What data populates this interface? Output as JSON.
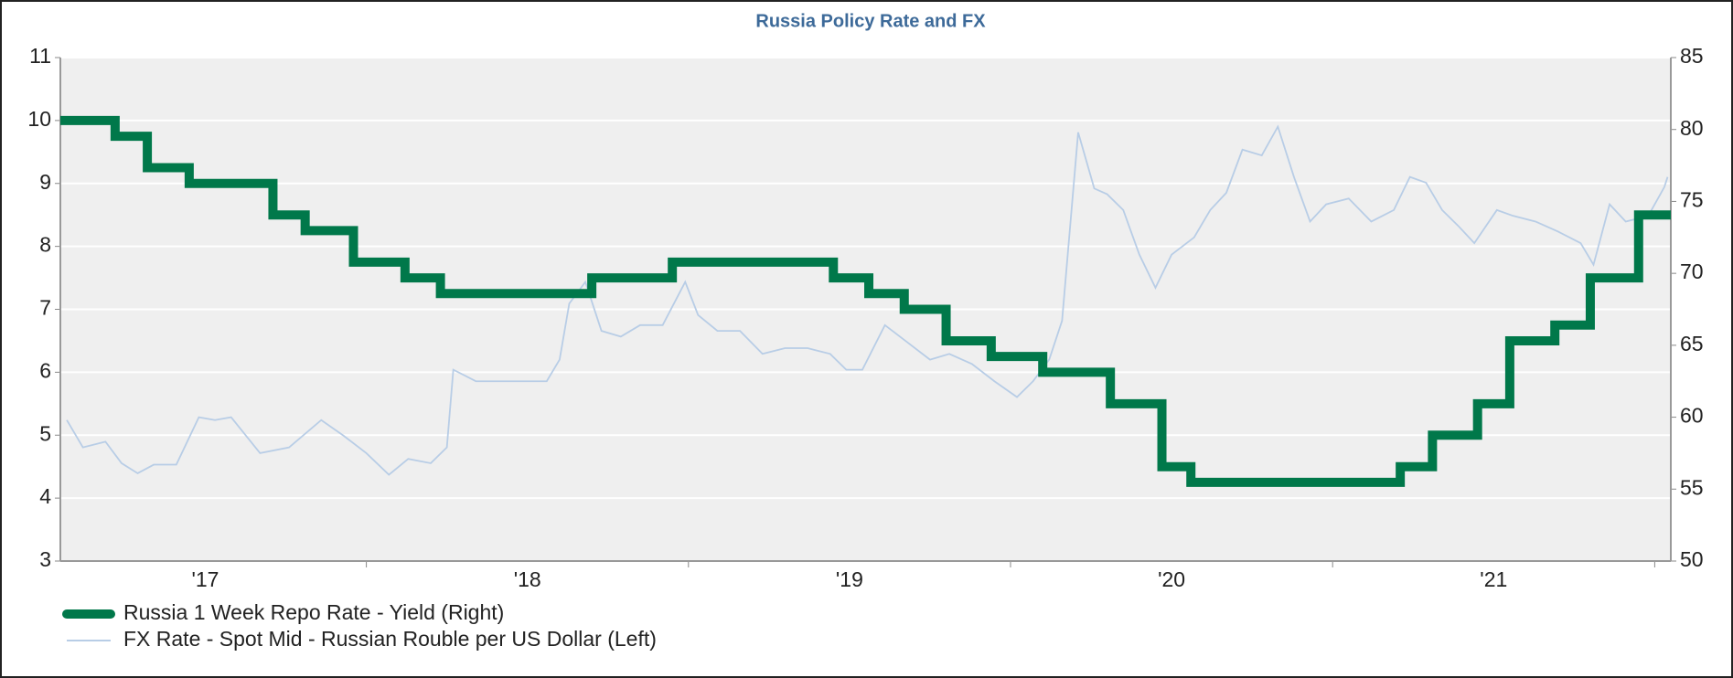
{
  "chart_data": {
    "type": "line",
    "title": "Russia Policy Rate and FX",
    "xlim": [
      2017.05,
      2022.05
    ],
    "xticks": [
      {
        "value": 2017,
        "label": "'17"
      },
      {
        "value": 2018,
        "label": "'18"
      },
      {
        "value": 2019,
        "label": "'19"
      },
      {
        "value": 2020,
        "label": "'20"
      },
      {
        "value": 2021,
        "label": "'21"
      }
    ],
    "ylim": [
      3,
      11
    ],
    "yticks": [
      3,
      4,
      5,
      6,
      7,
      8,
      9,
      10,
      11
    ],
    "y2lim": [
      50,
      85
    ],
    "y2ticks": [
      50,
      55,
      60,
      65,
      70,
      75,
      80,
      85
    ],
    "grid": true,
    "series": [
      {
        "name": "Russia 1 Week Repo Rate - Yield (Right)",
        "color": "#00784a",
        "step": "post",
        "x": [
          2017.05,
          2017.22,
          2017.32,
          2017.45,
          2017.71,
          2017.81,
          2017.96,
          2018.12,
          2018.23,
          2018.7,
          2018.95,
          2019.45,
          2019.56,
          2019.67,
          2019.8,
          2019.94,
          2020.1,
          2020.31,
          2020.47,
          2020.56,
          2021.21,
          2021.31,
          2021.45,
          2021.55,
          2021.69,
          2021.8,
          2021.95
        ],
        "values": [
          10,
          9.75,
          9.25,
          9,
          8.5,
          8.25,
          7.75,
          7.5,
          7.25,
          7.5,
          7.75,
          7.5,
          7.25,
          7,
          6.5,
          6.25,
          6,
          5.5,
          4.5,
          4.25,
          4.5,
          5,
          5.5,
          6.5,
          6.75,
          7.5,
          8.5
        ]
      },
      {
        "name": "FX Rate - Spot Mid - Russian Rouble per US Dollar (Left)",
        "color": "#b8cde6",
        "axis": "y2",
        "x": [
          2017.07,
          2017.12,
          2017.19,
          2017.24,
          2017.29,
          2017.34,
          2017.41,
          2017.48,
          2017.53,
          2017.58,
          2017.67,
          2017.76,
          2017.86,
          2017.93,
          2018.0,
          2018.07,
          2018.13,
          2018.2,
          2018.25,
          2018.27,
          2018.34,
          2018.41,
          2018.48,
          2018.56,
          2018.6,
          2018.63,
          2018.68,
          2018.73,
          2018.79,
          2018.85,
          2018.92,
          2018.99,
          2019.03,
          2019.09,
          2019.16,
          2019.23,
          2019.3,
          2019.37,
          2019.44,
          2019.49,
          2019.54,
          2019.61,
          2019.68,
          2019.75,
          2019.81,
          2019.88,
          2019.95,
          2020.02,
          2020.07,
          2020.12,
          2020.16,
          2020.21,
          2020.26,
          2020.3,
          2020.35,
          2020.4,
          2020.45,
          2020.5,
          2020.57,
          2020.62,
          2020.67,
          2020.72,
          2020.78,
          2020.83,
          2020.88,
          2020.93,
          2020.98,
          2021.05,
          2021.12,
          2021.19,
          2021.24,
          2021.29,
          2021.34,
          2021.39,
          2021.44,
          2021.51,
          2021.56,
          2021.63,
          2021.7,
          2021.77,
          2021.81,
          2021.86,
          2021.91,
          2021.98,
          2022.03,
          2022.04
        ],
        "values": [
          59.8,
          57.9,
          58.3,
          56.8,
          56.1,
          56.7,
          56.7,
          60.0,
          59.8,
          60.0,
          57.5,
          57.9,
          59.8,
          58.7,
          57.5,
          56.0,
          57.1,
          56.8,
          57.9,
          63.3,
          62.5,
          62.5,
          62.5,
          62.5,
          64.0,
          67.9,
          69.4,
          66.0,
          65.6,
          66.4,
          66.4,
          69.4,
          67.1,
          66.0,
          66.0,
          64.4,
          64.8,
          64.8,
          64.4,
          63.3,
          63.3,
          66.4,
          65.2,
          64.0,
          64.4,
          63.7,
          62.5,
          61.4,
          62.5,
          64.0,
          66.7,
          79.8,
          75.9,
          75.5,
          74.4,
          71.3,
          69.0,
          71.3,
          72.5,
          74.4,
          75.6,
          78.6,
          78.2,
          80.2,
          76.7,
          73.6,
          74.8,
          75.2,
          73.6,
          74.4,
          76.7,
          76.3,
          74.4,
          73.3,
          72.1,
          74.4,
          74.0,
          73.6,
          72.9,
          72.1,
          70.6,
          74.8,
          73.6,
          74.0,
          76.0,
          76.7
        ]
      }
    ]
  }
}
